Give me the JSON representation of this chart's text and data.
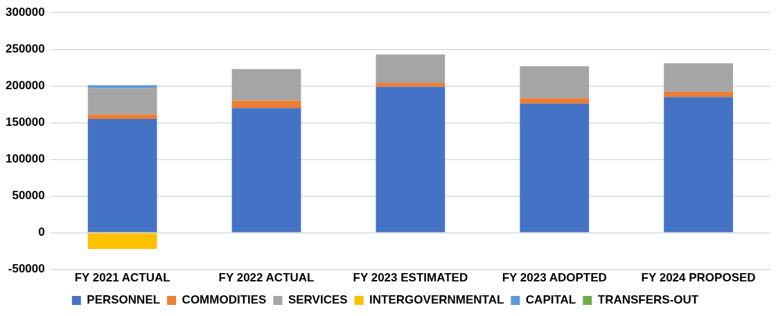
{
  "chart_data": {
    "type": "bar",
    "stacked": true,
    "categories": [
      "FY 2021 ACTUAL",
      "FY 2022 ACTUAL",
      "FY 2023 ESTIMATED",
      "FY 2023 ADOPTED",
      "FY 2024 PROPOSED"
    ],
    "series": [
      {
        "name": "PERSONNEL",
        "color": "#4472c4",
        "values": [
          155000,
          170000,
          199000,
          176000,
          185000
        ]
      },
      {
        "name": "COMMODITIES",
        "color": "#ed7d31",
        "values": [
          6000,
          10000,
          5000,
          7000,
          7000
        ]
      },
      {
        "name": "SERVICES",
        "color": "#a5a5a5",
        "values": [
          36000,
          43000,
          39000,
          44000,
          39000
        ]
      },
      {
        "name": "INTERGOVERNMENTAL",
        "color": "#ffc000",
        "values": [
          -22000,
          0,
          0,
          0,
          0
        ]
      },
      {
        "name": "CAPITAL",
        "color": "#5b9bd5",
        "values": [
          4000,
          0,
          0,
          0,
          0
        ]
      },
      {
        "name": "TRANSFERS-OUT",
        "color": "#70ad47",
        "values": [
          0,
          0,
          0,
          0,
          0
        ]
      }
    ],
    "ylim": [
      -50000,
      300000
    ],
    "yticks": [
      -50000,
      0,
      50000,
      100000,
      150000,
      200000,
      250000,
      300000
    ],
    "grid": "y",
    "legend": "bottom"
  }
}
